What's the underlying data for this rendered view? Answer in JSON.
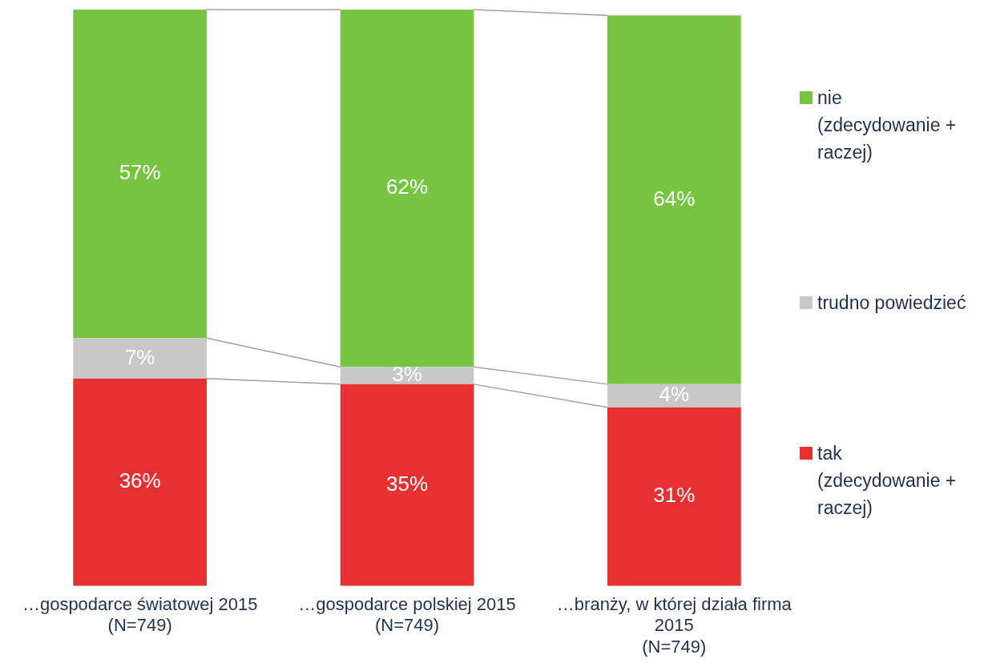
{
  "chart_data": {
    "type": "bar",
    "stacked": true,
    "legend": "right",
    "grid": false,
    "categories": [
      "…gospodarce światowej 2015\n(N=749)",
      "…gospodarce polskiej 2015\n(N=749)",
      "…branży, w której działa firma\n2015\n(N=749)"
    ],
    "series": [
      {
        "name": "tak (zdecydowanie + raczej)",
        "color": "#e63031",
        "values": [
          36,
          35,
          31
        ],
        "value_labels": [
          "36%",
          "35%",
          "31%"
        ]
      },
      {
        "name": "trudno powiedzieć",
        "color": "#c8c8c8",
        "values": [
          7,
          3,
          4
        ],
        "value_labels": [
          "7%",
          "3%",
          "4%"
        ]
      },
      {
        "name": "nie (zdecydowanie + raczej)",
        "color": "#77c443",
        "values": [
          57,
          62,
          64
        ],
        "value_labels": [
          "57%",
          "62%",
          "64%"
        ]
      }
    ]
  }
}
